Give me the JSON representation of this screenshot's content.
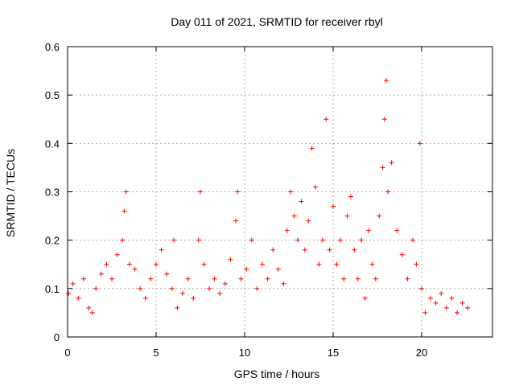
{
  "chart_data": {
    "type": "scatter",
    "title": "Day 011 of 2021, SRMTID for receiver rbyl",
    "xlabel": "GPS time / hours",
    "ylabel": "SRMTID / TECUs",
    "xlim": [
      0,
      24
    ],
    "ylim": [
      0,
      0.6
    ],
    "xticks": [
      0,
      5,
      10,
      15,
      20
    ],
    "yticks": [
      0,
      0.1,
      0.2,
      0.3,
      0.4,
      0.5,
      0.6
    ],
    "ytick_labels": [
      "0",
      "0.1",
      "0.2",
      "0.3",
      "0.4",
      "0.5",
      "0.6"
    ],
    "grid": true,
    "marker": "+",
    "series_color": "#ff0000",
    "series": [
      {
        "name": "SRMTID",
        "x": [
          0.05,
          0.3,
          0.6,
          0.9,
          1.2,
          1.4,
          1.6,
          1.9,
          2.2,
          2.5,
          2.8,
          3.1,
          3.2,
          3.3,
          3.5,
          3.8,
          4.1,
          4.4,
          4.7,
          5.0,
          5.3,
          5.6,
          5.9,
          6.0,
          6.2,
          6.5,
          6.8,
          7.1,
          7.4,
          7.5,
          7.7,
          8.0,
          8.3,
          8.6,
          8.9,
          9.2,
          9.5,
          9.6,
          9.8,
          10.1,
          10.4,
          10.7,
          11.0,
          11.3,
          11.6,
          11.9,
          12.2,
          12.4,
          12.6,
          12.8,
          13.0,
          13.2,
          13.4,
          13.6,
          13.8,
          14.0,
          14.2,
          14.4,
          14.6,
          14.8,
          15.0,
          15.2,
          15.4,
          15.6,
          15.8,
          16.0,
          16.2,
          16.4,
          16.6,
          16.8,
          17.0,
          17.2,
          17.4,
          17.6,
          17.8,
          17.9,
          18.0,
          18.1,
          18.3,
          18.6,
          18.9,
          19.2,
          19.5,
          19.7,
          19.9,
          20.0,
          20.2,
          20.5,
          20.8,
          21.1,
          21.4,
          21.7,
          22.0,
          22.3,
          22.6
        ],
        "y": [
          0.09,
          0.11,
          0.08,
          0.12,
          0.06,
          0.05,
          0.1,
          0.13,
          0.15,
          0.12,
          0.17,
          0.2,
          0.26,
          0.3,
          0.15,
          0.14,
          0.1,
          0.08,
          0.12,
          0.15,
          0.18,
          0.13,
          0.1,
          0.2,
          0.06,
          0.09,
          0.12,
          0.08,
          0.2,
          0.3,
          0.15,
          0.1,
          0.12,
          0.09,
          0.11,
          0.16,
          0.24,
          0.3,
          0.12,
          0.14,
          0.2,
          0.1,
          0.15,
          0.12,
          0.18,
          0.14,
          0.11,
          0.22,
          0.3,
          0.25,
          0.2,
          0.28,
          0.18,
          0.24,
          0.39,
          0.31,
          0.15,
          0.2,
          0.45,
          0.18,
          0.27,
          0.15,
          0.2,
          0.12,
          0.25,
          0.29,
          0.18,
          0.12,
          0.2,
          0.08,
          0.22,
          0.15,
          0.12,
          0.25,
          0.35,
          0.45,
          0.53,
          0.3,
          0.36,
          0.22,
          0.17,
          0.12,
          0.2,
          0.15,
          0.4,
          0.1,
          0.05,
          0.08,
          0.07,
          0.09,
          0.06,
          0.08,
          0.05,
          0.07,
          0.06
        ]
      }
    ]
  }
}
